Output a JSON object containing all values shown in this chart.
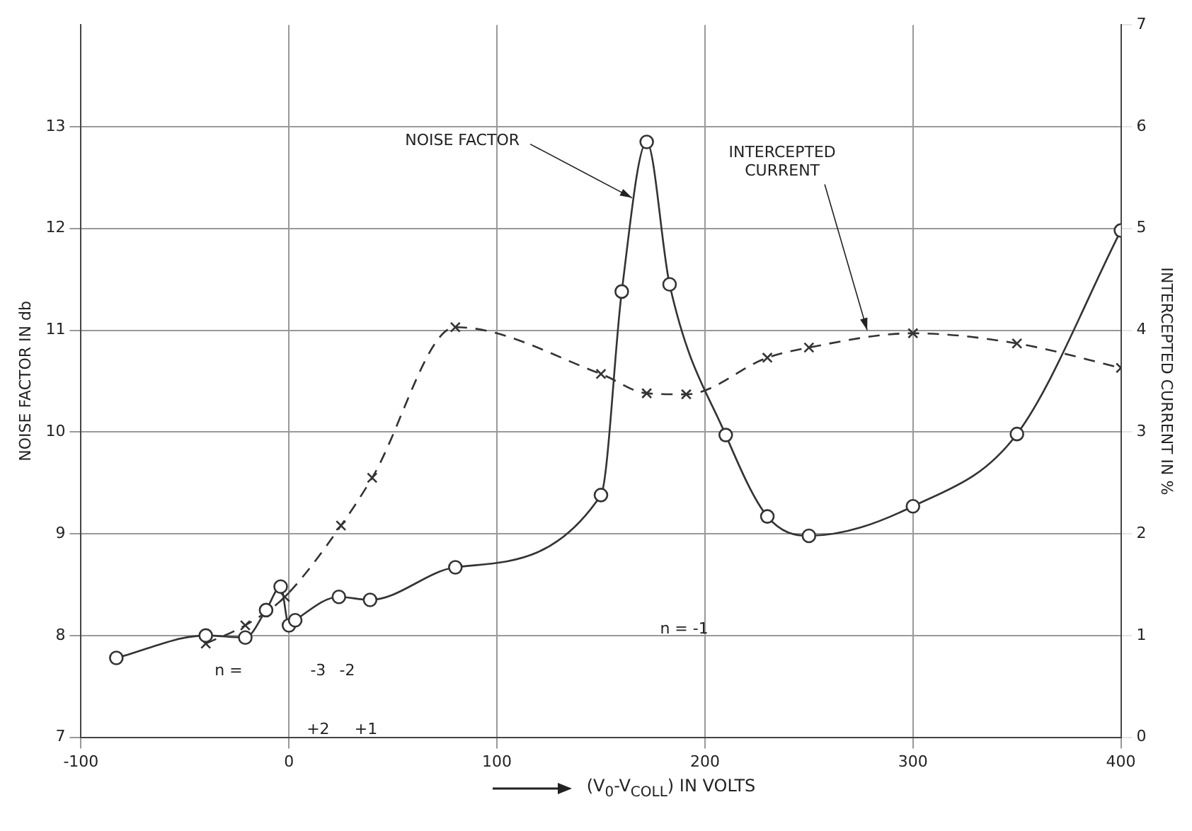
{
  "chart_data": {
    "type": "line",
    "xlabel": "(V$_{0}$-V$_{COLL}$) IN VOLTS",
    "ylabel": "NOISE FACTOR IN db",
    "y2label": "INTERCEPTED CURRENT IN %",
    "xlim": [
      -100,
      400
    ],
    "xticks": [
      -100,
      0,
      100,
      200,
      300,
      400
    ],
    "ylim": [
      7,
      14
    ],
    "yticks": [
      7,
      8,
      9,
      10,
      11,
      12,
      13
    ],
    "y2lim": [
      0,
      7
    ],
    "y2ticks": [
      0,
      1,
      2,
      3,
      4,
      5,
      6,
      7
    ],
    "grid": true,
    "legend": false,
    "series": [
      {
        "color": "#333333",
        "marker": "circle",
        "line_style": "solid",
        "x": [
          -83,
          -40,
          -21,
          -11,
          -4,
          0,
          3,
          24,
          39,
          80,
          150,
          160,
          172,
          183,
          210,
          230,
          250,
          300,
          350,
          400
        ],
        "values": [
          7.78,
          8.0,
          7.98,
          8.25,
          8.48,
          8.1,
          8.15,
          8.38,
          8.35,
          8.67,
          9.38,
          11.38,
          12.85,
          11.45,
          9.97,
          9.17,
          8.98,
          9.27,
          9.98,
          11.98
        ]
      },
      {
        "color": "#333333",
        "marker": "cross",
        "line_style": "dashed",
        "axis": "y2",
        "x": [
          -40,
          -21,
          -2,
          25,
          40,
          80,
          150,
          172,
          191,
          230,
          250,
          300,
          350,
          400
        ],
        "values": [
          0.92,
          1.1,
          1.38,
          2.08,
          2.55,
          4.03,
          3.57,
          3.38,
          3.37,
          3.73,
          3.83,
          3.97,
          3.87,
          3.63
        ]
      }
    ],
    "annotations": [
      {
        "text": "NOISE FACTOR",
        "x": 165,
        "y": 12.3
      },
      {
        "text": "INTERCEPTED CURRENT",
        "x": 278,
        "y": 11.0
      },
      "n =",
      "-3",
      "-2",
      "+2",
      "+1",
      "n = -1"
    ]
  }
}
